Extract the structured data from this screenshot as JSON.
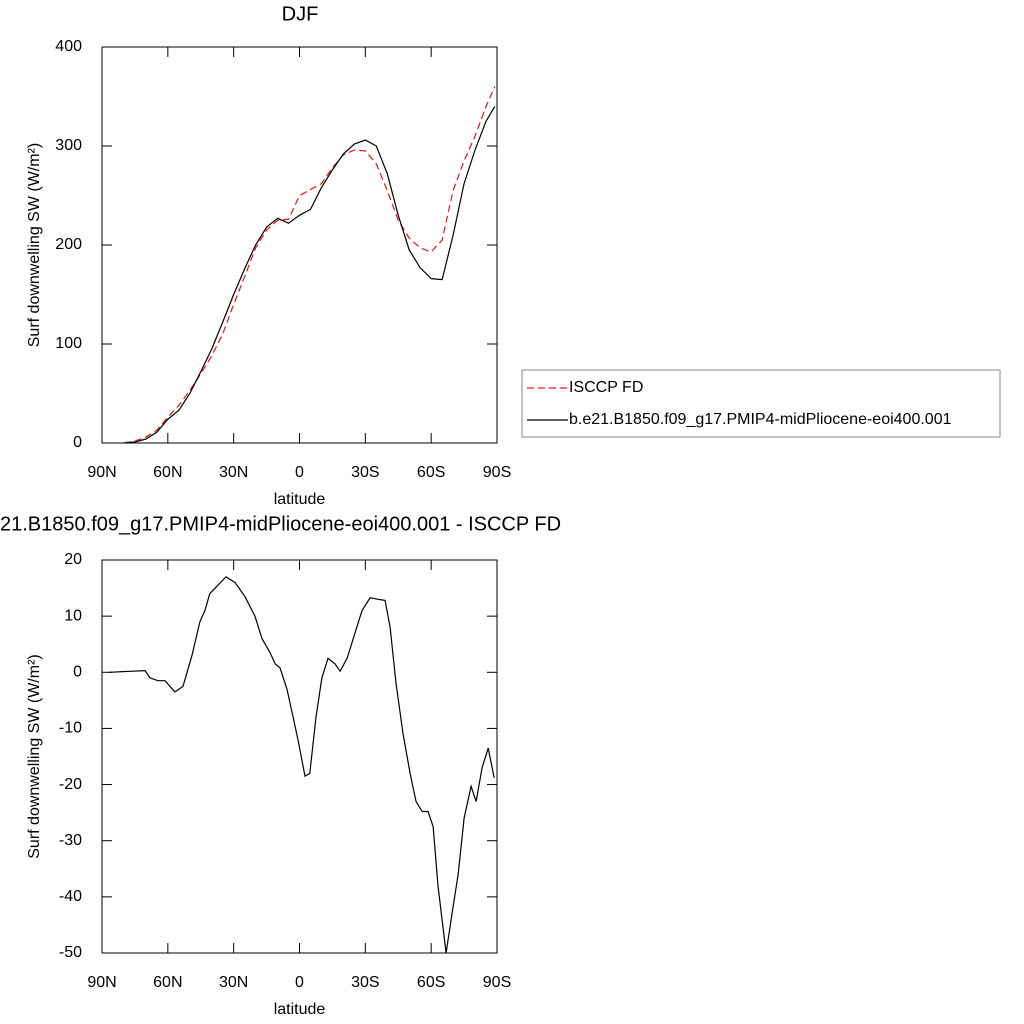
{
  "chart_data": [
    {
      "type": "line",
      "title": "DJF",
      "xlabel": "latitude",
      "ylabel": "Surf downwelling SW (W/m²)",
      "xlim": [
        90,
        -90
      ],
      "ylim": [
        0,
        400
      ],
      "xticks": [
        {
          "value": 90,
          "label": "90N"
        },
        {
          "value": 60,
          "label": "60N"
        },
        {
          "value": 30,
          "label": "30N"
        },
        0,
        {
          "value": -30,
          "label": "30S"
        },
        {
          "value": -60,
          "label": "60S"
        },
        {
          "value": -90,
          "label": "90S"
        }
      ],
      "yticks": [
        0,
        100,
        200,
        300,
        400
      ],
      "x": [
        80,
        75,
        70,
        65,
        60,
        55,
        50,
        45,
        40,
        35,
        30,
        25,
        20,
        15,
        10,
        5,
        0,
        -5,
        -10,
        -15,
        -20,
        -25,
        -30,
        -35,
        -40,
        -45,
        -50,
        -55,
        -60,
        -65,
        -70,
        -75,
        -80,
        -85,
        -89
      ],
      "series": [
        {
          "name": "ISCCP FD",
          "color": "#e8141a",
          "dashed": true,
          "values": [
            0,
            2,
            6,
            13,
            26,
            38,
            53,
            70,
            88,
            110,
            140,
            168,
            197,
            215,
            225,
            226,
            250,
            256,
            262,
            278,
            291,
            296,
            295,
            282,
            255,
            225,
            207,
            197,
            193,
            205,
            255,
            285,
            310,
            340,
            360
          ]
        },
        {
          "name": "b.e21.B1850.f09_g17.PMIP4-midPliocene-eoi400.001",
          "color": "#000000",
          "dashed": false,
          "values": [
            0,
            1,
            4,
            11,
            24,
            33,
            50,
            72,
            95,
            122,
            150,
            176,
            200,
            218,
            227,
            222,
            230,
            236,
            258,
            276,
            292,
            302,
            306,
            300,
            272,
            230,
            195,
            177,
            166,
            165,
            210,
            262,
            296,
            325,
            340
          ]
        }
      ]
    },
    {
      "type": "line",
      "title": "21.B1850.f09_g17.PMIP4-midPliocene-eoi400.001 - ISCCP FD",
      "xlabel": "latitude",
      "ylabel": "Surf downwelling SW (W/m²)",
      "xlim": [
        90,
        -90
      ],
      "ylim": [
        -50,
        20
      ],
      "xticks": [
        {
          "value": 90,
          "label": "90N"
        },
        {
          "value": 60,
          "label": "60N"
        },
        {
          "value": 30,
          "label": "30N"
        },
        0,
        {
          "value": -30,
          "label": "30S"
        },
        {
          "value": -60,
          "label": "60S"
        },
        {
          "value": -90,
          "label": "90S"
        }
      ],
      "yticks": [
        -50,
        -40,
        -30,
        -20,
        -10,
        0,
        10,
        20
      ],
      "x": [
        86.8,
        70.4,
        68.1,
        64.5,
        61.3,
        56.8,
        53.1,
        49.0,
        45.4,
        43.1,
        40.9,
        33.5,
        29.4,
        24.9,
        20.3,
        17.1,
        13.4,
        11.1,
        8.9,
        5.7,
        2.9,
        0.7,
        -2.5,
        -4.7,
        -7.5,
        -10.2,
        -13.0,
        -16.2,
        -18.5,
        -21.7,
        -25.3,
        -28.5,
        -32.2,
        -35.8,
        -39.0,
        -41.3,
        -44.0,
        -47.2,
        -50.4,
        -53.1,
        -55.9,
        -58.6,
        -60.9,
        -63.1,
        -66.8,
        -69.5,
        -72.3,
        -75.0,
        -78.2,
        -80.5,
        -83.2,
        -86.0,
        -88.7
      ],
      "series": [
        {
          "color": "#000000",
          "dashed": false,
          "values": [
            0,
            0.3,
            -1,
            -1.5,
            -1.5,
            -3.5,
            -2.5,
            3,
            9,
            11,
            14,
            17,
            16,
            13.5,
            10,
            6,
            3.5,
            1.5,
            0.8,
            -3,
            -8,
            -12,
            -18.5,
            -18,
            -8,
            -1,
            2.5,
            1.5,
            0.2,
            2.5,
            7,
            11,
            13.3,
            13,
            12.8,
            8,
            -2,
            -11,
            -18,
            -23,
            -24.8,
            -24.8,
            -27.5,
            -38,
            -50,
            -43,
            -36,
            -26,
            -20.3,
            -23,
            -17,
            -13.5,
            -18.8
          ]
        }
      ]
    }
  ]
}
